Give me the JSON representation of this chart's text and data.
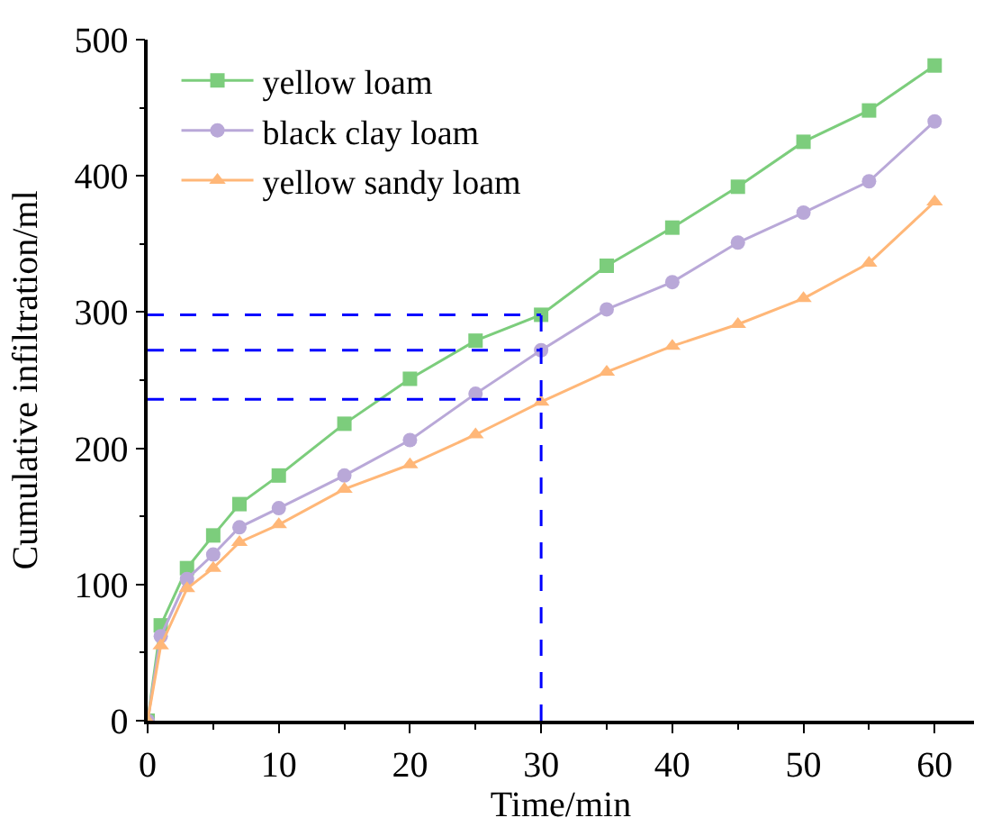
{
  "chart_data": {
    "type": "line",
    "xlabel": "Time/min",
    "ylabel": "Cumulative infiltration/ml",
    "x": [
      0,
      1,
      3,
      5,
      7,
      10,
      15,
      20,
      25,
      30,
      35,
      40,
      45,
      50,
      55,
      60
    ],
    "series": [
      {
        "name": "yellow loam",
        "color": "#7ccd7c",
        "marker": "square",
        "values": [
          0,
          70,
          112,
          136,
          159,
          180,
          218,
          251,
          279,
          298,
          334,
          362,
          392,
          425,
          448,
          481
        ]
      },
      {
        "name": "black clay loam",
        "color": "#b9a8d8",
        "marker": "circle",
        "values": [
          0,
          62,
          104,
          122,
          142,
          156,
          180,
          206,
          240,
          272,
          302,
          322,
          351,
          373,
          396,
          440
        ]
      },
      {
        "name": "yellow sandy loam",
        "color": "#ffb778",
        "marker": "triangle",
        "values": [
          0,
          55,
          97,
          112,
          131,
          144,
          170,
          188,
          210,
          234,
          256,
          275,
          291,
          310,
          336,
          381
        ]
      }
    ],
    "ref_lines": [
      {
        "axis": "x",
        "value": 30,
        "color": "#0000ff",
        "line_style": "dashed"
      },
      {
        "axis": "y",
        "value": 298,
        "color": "#0000ff",
        "line_style": "dashed"
      },
      {
        "axis": "y",
        "value": 272,
        "color": "#0000ff",
        "line_style": "dashed"
      },
      {
        "axis": "y",
        "value": 236,
        "color": "#0000ff",
        "line_style": "dashed"
      }
    ],
    "xlim": [
      0,
      63
    ],
    "xticks": [
      0,
      10,
      20,
      30,
      40,
      50,
      60
    ],
    "ylim": [
      0,
      500
    ],
    "yticks": [
      0,
      100,
      200,
      300,
      400,
      500
    ],
    "legend": "top left",
    "line_style": "solid"
  }
}
